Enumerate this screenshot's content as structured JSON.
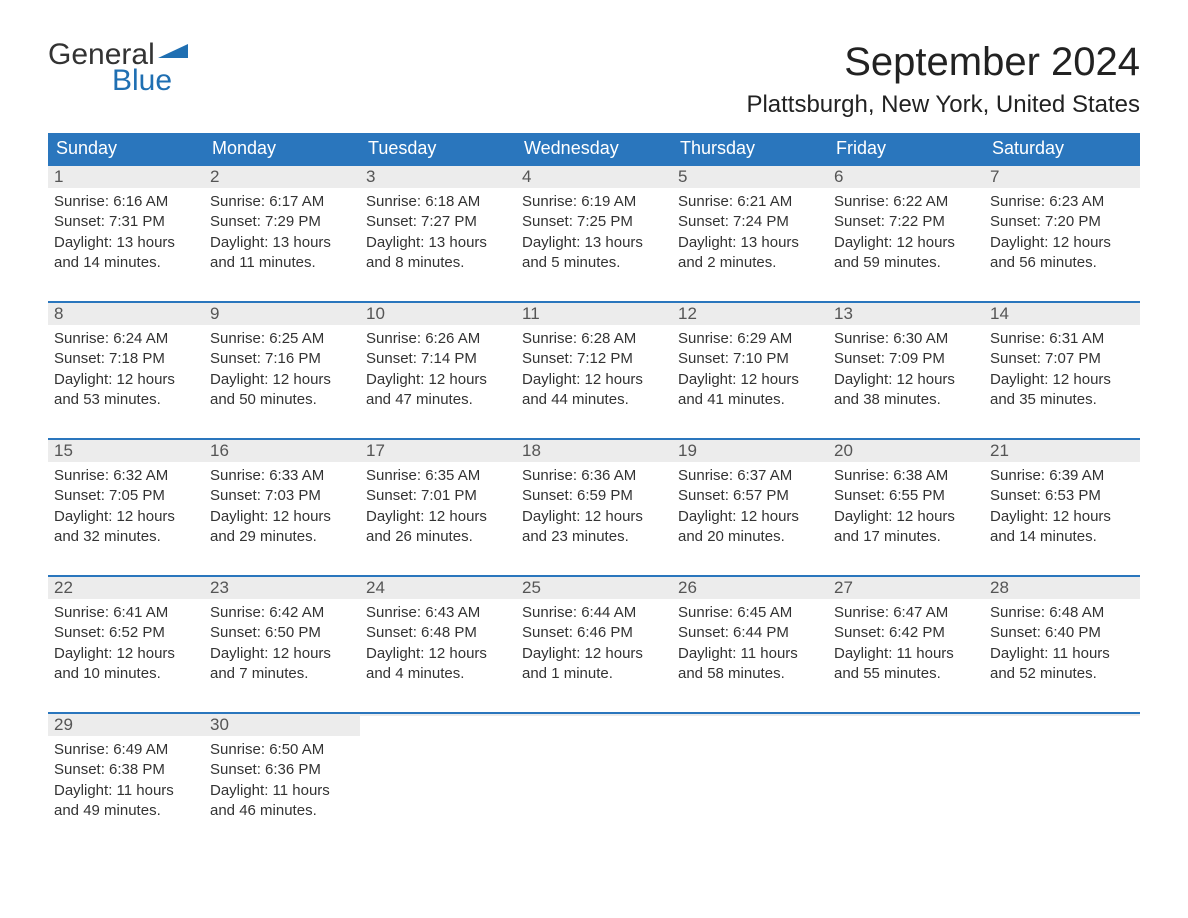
{
  "logo": {
    "text1": "General",
    "text2": "Blue"
  },
  "title": "September 2024",
  "location": "Plattsburgh, New York, United States",
  "colors": {
    "header_bg": "#2a76bd",
    "header_text": "#ffffff",
    "daynum_bg": "#ececec",
    "daynum_border": "#2a76bd",
    "daynum_text": "#555555",
    "body_text": "#333333",
    "logo_blue": "#1f6fb2",
    "background": "#ffffff"
  },
  "typography": {
    "title_fontsize": 40,
    "location_fontsize": 24,
    "dayheader_fontsize": 18,
    "daynum_fontsize": 17,
    "content_fontsize": 15
  },
  "day_headers": [
    "Sunday",
    "Monday",
    "Tuesday",
    "Wednesday",
    "Thursday",
    "Friday",
    "Saturday"
  ],
  "weeks": [
    [
      {
        "n": "1",
        "sunrise": "Sunrise: 6:16 AM",
        "sunset": "Sunset: 7:31 PM",
        "day1": "Daylight: 13 hours",
        "day2": "and 14 minutes."
      },
      {
        "n": "2",
        "sunrise": "Sunrise: 6:17 AM",
        "sunset": "Sunset: 7:29 PM",
        "day1": "Daylight: 13 hours",
        "day2": "and 11 minutes."
      },
      {
        "n": "3",
        "sunrise": "Sunrise: 6:18 AM",
        "sunset": "Sunset: 7:27 PM",
        "day1": "Daylight: 13 hours",
        "day2": "and 8 minutes."
      },
      {
        "n": "4",
        "sunrise": "Sunrise: 6:19 AM",
        "sunset": "Sunset: 7:25 PM",
        "day1": "Daylight: 13 hours",
        "day2": "and 5 minutes."
      },
      {
        "n": "5",
        "sunrise": "Sunrise: 6:21 AM",
        "sunset": "Sunset: 7:24 PM",
        "day1": "Daylight: 13 hours",
        "day2": "and 2 minutes."
      },
      {
        "n": "6",
        "sunrise": "Sunrise: 6:22 AM",
        "sunset": "Sunset: 7:22 PM",
        "day1": "Daylight: 12 hours",
        "day2": "and 59 minutes."
      },
      {
        "n": "7",
        "sunrise": "Sunrise: 6:23 AM",
        "sunset": "Sunset: 7:20 PM",
        "day1": "Daylight: 12 hours",
        "day2": "and 56 minutes."
      }
    ],
    [
      {
        "n": "8",
        "sunrise": "Sunrise: 6:24 AM",
        "sunset": "Sunset: 7:18 PM",
        "day1": "Daylight: 12 hours",
        "day2": "and 53 minutes."
      },
      {
        "n": "9",
        "sunrise": "Sunrise: 6:25 AM",
        "sunset": "Sunset: 7:16 PM",
        "day1": "Daylight: 12 hours",
        "day2": "and 50 minutes."
      },
      {
        "n": "10",
        "sunrise": "Sunrise: 6:26 AM",
        "sunset": "Sunset: 7:14 PM",
        "day1": "Daylight: 12 hours",
        "day2": "and 47 minutes."
      },
      {
        "n": "11",
        "sunrise": "Sunrise: 6:28 AM",
        "sunset": "Sunset: 7:12 PM",
        "day1": "Daylight: 12 hours",
        "day2": "and 44 minutes."
      },
      {
        "n": "12",
        "sunrise": "Sunrise: 6:29 AM",
        "sunset": "Sunset: 7:10 PM",
        "day1": "Daylight: 12 hours",
        "day2": "and 41 minutes."
      },
      {
        "n": "13",
        "sunrise": "Sunrise: 6:30 AM",
        "sunset": "Sunset: 7:09 PM",
        "day1": "Daylight: 12 hours",
        "day2": "and 38 minutes."
      },
      {
        "n": "14",
        "sunrise": "Sunrise: 6:31 AM",
        "sunset": "Sunset: 7:07 PM",
        "day1": "Daylight: 12 hours",
        "day2": "and 35 minutes."
      }
    ],
    [
      {
        "n": "15",
        "sunrise": "Sunrise: 6:32 AM",
        "sunset": "Sunset: 7:05 PM",
        "day1": "Daylight: 12 hours",
        "day2": "and 32 minutes."
      },
      {
        "n": "16",
        "sunrise": "Sunrise: 6:33 AM",
        "sunset": "Sunset: 7:03 PM",
        "day1": "Daylight: 12 hours",
        "day2": "and 29 minutes."
      },
      {
        "n": "17",
        "sunrise": "Sunrise: 6:35 AM",
        "sunset": "Sunset: 7:01 PM",
        "day1": "Daylight: 12 hours",
        "day2": "and 26 minutes."
      },
      {
        "n": "18",
        "sunrise": "Sunrise: 6:36 AM",
        "sunset": "Sunset: 6:59 PM",
        "day1": "Daylight: 12 hours",
        "day2": "and 23 minutes."
      },
      {
        "n": "19",
        "sunrise": "Sunrise: 6:37 AM",
        "sunset": "Sunset: 6:57 PM",
        "day1": "Daylight: 12 hours",
        "day2": "and 20 minutes."
      },
      {
        "n": "20",
        "sunrise": "Sunrise: 6:38 AM",
        "sunset": "Sunset: 6:55 PM",
        "day1": "Daylight: 12 hours",
        "day2": "and 17 minutes."
      },
      {
        "n": "21",
        "sunrise": "Sunrise: 6:39 AM",
        "sunset": "Sunset: 6:53 PM",
        "day1": "Daylight: 12 hours",
        "day2": "and 14 minutes."
      }
    ],
    [
      {
        "n": "22",
        "sunrise": "Sunrise: 6:41 AM",
        "sunset": "Sunset: 6:52 PM",
        "day1": "Daylight: 12 hours",
        "day2": "and 10 minutes."
      },
      {
        "n": "23",
        "sunrise": "Sunrise: 6:42 AM",
        "sunset": "Sunset: 6:50 PM",
        "day1": "Daylight: 12 hours",
        "day2": "and 7 minutes."
      },
      {
        "n": "24",
        "sunrise": "Sunrise: 6:43 AM",
        "sunset": "Sunset: 6:48 PM",
        "day1": "Daylight: 12 hours",
        "day2": "and 4 minutes."
      },
      {
        "n": "25",
        "sunrise": "Sunrise: 6:44 AM",
        "sunset": "Sunset: 6:46 PM",
        "day1": "Daylight: 12 hours",
        "day2": "and 1 minute."
      },
      {
        "n": "26",
        "sunrise": "Sunrise: 6:45 AM",
        "sunset": "Sunset: 6:44 PM",
        "day1": "Daylight: 11 hours",
        "day2": "and 58 minutes."
      },
      {
        "n": "27",
        "sunrise": "Sunrise: 6:47 AM",
        "sunset": "Sunset: 6:42 PM",
        "day1": "Daylight: 11 hours",
        "day2": "and 55 minutes."
      },
      {
        "n": "28",
        "sunrise": "Sunrise: 6:48 AM",
        "sunset": "Sunset: 6:40 PM",
        "day1": "Daylight: 11 hours",
        "day2": "and 52 minutes."
      }
    ],
    [
      {
        "n": "29",
        "sunrise": "Sunrise: 6:49 AM",
        "sunset": "Sunset: 6:38 PM",
        "day1": "Daylight: 11 hours",
        "day2": "and 49 minutes."
      },
      {
        "n": "30",
        "sunrise": "Sunrise: 6:50 AM",
        "sunset": "Sunset: 6:36 PM",
        "day1": "Daylight: 11 hours",
        "day2": "and 46 minutes."
      },
      {
        "n": "",
        "sunrise": "",
        "sunset": "",
        "day1": "",
        "day2": ""
      },
      {
        "n": "",
        "sunrise": "",
        "sunset": "",
        "day1": "",
        "day2": ""
      },
      {
        "n": "",
        "sunrise": "",
        "sunset": "",
        "day1": "",
        "day2": ""
      },
      {
        "n": "",
        "sunrise": "",
        "sunset": "",
        "day1": "",
        "day2": ""
      },
      {
        "n": "",
        "sunrise": "",
        "sunset": "",
        "day1": "",
        "day2": ""
      }
    ]
  ]
}
